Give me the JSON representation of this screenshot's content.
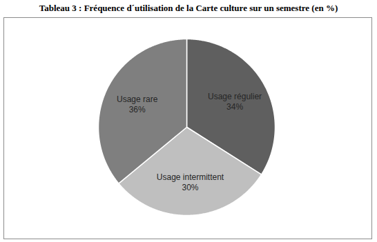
{
  "chart_data": {
    "type": "pie",
    "title": "Tableau 3 : Fréquence d´utilisation de la Carte culture sur un semestre (en %)",
    "categories": [
      "Usage régulier",
      "Usage intermittent",
      "Usage rare"
    ],
    "values": [
      34,
      30,
      36
    ],
    "value_labels": [
      "34%",
      "30%",
      "36%"
    ],
    "colors": [
      "#5f5f5f",
      "#bfbfbf",
      "#7f7f7f"
    ],
    "data_labels": true
  }
}
